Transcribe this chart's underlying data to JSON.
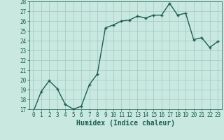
{
  "title": "",
  "xlabel": "Humidex (Indice chaleur)",
  "ylabel": "",
  "x_values": [
    0,
    1,
    2,
    3,
    4,
    5,
    6,
    7,
    8,
    9,
    10,
    11,
    12,
    13,
    14,
    15,
    16,
    17,
    18,
    19,
    20,
    21,
    22,
    23
  ],
  "y_values": [
    16.7,
    18.8,
    19.9,
    19.1,
    17.5,
    17.0,
    17.3,
    19.5,
    20.6,
    25.3,
    25.6,
    26.0,
    26.1,
    26.5,
    26.3,
    26.6,
    26.6,
    27.8,
    26.6,
    26.8,
    24.1,
    24.3,
    23.3,
    23.9
  ],
  "line_color": "#1e5f50",
  "marker": "+",
  "marker_color": "#1e5f50",
  "bg_color": "#c8e8e0",
  "grid_color": "#a0c8c0",
  "ylim": [
    17,
    28
  ],
  "yticks": [
    17,
    18,
    19,
    20,
    21,
    22,
    23,
    24,
    25,
    26,
    27,
    28
  ],
  "xticks": [
    0,
    1,
    2,
    3,
    4,
    5,
    6,
    7,
    8,
    9,
    10,
    11,
    12,
    13,
    14,
    15,
    16,
    17,
    18,
    19,
    20,
    21,
    22,
    23
  ],
  "tick_label_fontsize": 5.5,
  "xlabel_fontsize": 7,
  "line_width": 1.0
}
